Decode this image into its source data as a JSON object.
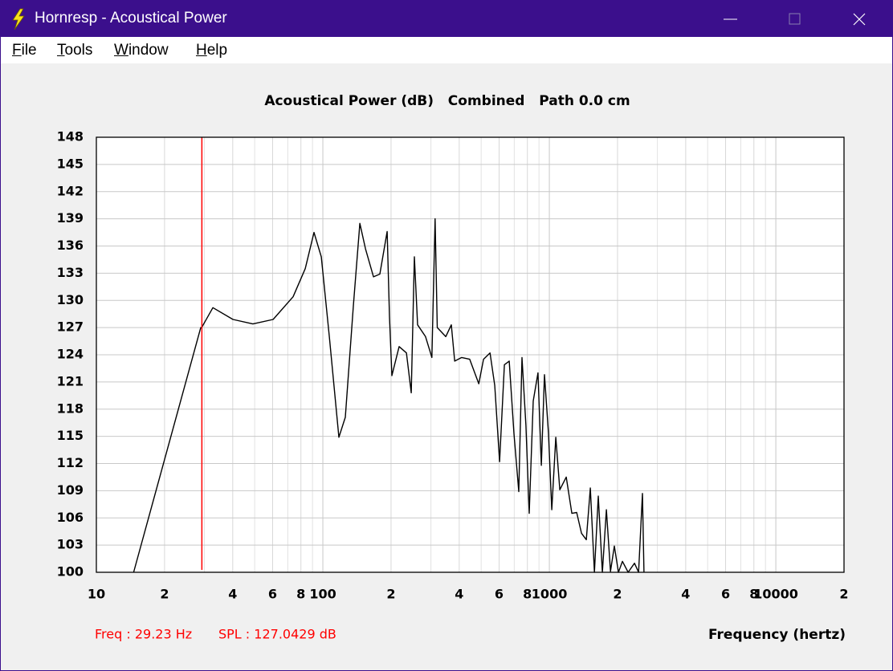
{
  "window": {
    "title": "Hornresp - Acoustical Power",
    "menu": [
      "File",
      "Tools",
      "Window",
      "Help"
    ]
  },
  "chart_data": {
    "type": "line",
    "title": "Acoustical Power (dB)   Combined   Path 0.0 cm",
    "x_label": "Frequency (hertz)",
    "x_log": true,
    "grid": true,
    "color": "#000000",
    "cursor_color": "#ff0000",
    "cursor_x": 29.23,
    "xlim": [
      10,
      20000
    ],
    "xticks": [
      10,
      {
        "value": 20,
        "label": "2"
      },
      {
        "value": 40,
        "label": "4"
      },
      {
        "value": 60,
        "label": "6"
      },
      {
        "value": 80,
        "label": "8"
      },
      100,
      {
        "value": 200,
        "label": "2"
      },
      {
        "value": 400,
        "label": "4"
      },
      {
        "value": 600,
        "label": "6"
      },
      {
        "value": 800,
        "label": "8"
      },
      1000,
      {
        "value": 2000,
        "label": "2"
      },
      {
        "value": 4000,
        "label": "4"
      },
      {
        "value": 6000,
        "label": "6"
      },
      {
        "value": 8000,
        "label": "8"
      },
      10000,
      {
        "value": 20000,
        "label": "2"
      }
    ],
    "xticks_minor": [
      30,
      50,
      70,
      90,
      300,
      500,
      700,
      900,
      3000,
      5000,
      7000,
      9000
    ],
    "ylim": [
      100,
      148
    ],
    "yticks": [
      100,
      103,
      106,
      109,
      112,
      115,
      118,
      121,
      124,
      127,
      130,
      133,
      136,
      139,
      142,
      145,
      148
    ],
    "x": [
      14.6,
      28.9,
      29.23,
      32.7,
      40.1,
      49.1,
      60.3,
      73.9,
      83.6,
      91.4,
      98.4,
      106.8,
      117.7,
      125.6,
      136.4,
      145.6,
      154.2,
      167.3,
      178.5,
      192.2,
      196.8,
      201.8,
      217.2,
      233.8,
      245.6,
      253.6,
      262,
      284,
      303,
      313,
      320,
      349,
      369,
      382,
      410,
      445,
      488,
      512,
      547,
      574,
      603,
      633,
      665,
      698,
      733,
      757,
      788,
      815,
      849,
      891,
      922,
      952,
      991,
      1025,
      1068,
      1112,
      1187,
      1257,
      1320,
      1387,
      1456,
      1517,
      1581,
      1644,
      1715,
      1786,
      1862,
      1937,
      2018,
      2102,
      2228,
      2377,
      2477,
      2576,
      2618
    ],
    "values": [
      100,
      127.0,
      127.0429,
      129.2,
      127.9,
      127.4,
      127.9,
      130.4,
      133.5,
      137.5,
      134.8,
      126.0,
      114.9,
      117.1,
      129.5,
      138.5,
      135.7,
      132.6,
      132.9,
      137.6,
      128.2,
      121.7,
      124.9,
      124.2,
      119.8,
      134.8,
      127.3,
      126.0,
      123.7,
      139.0,
      127.0,
      126.0,
      127.3,
      123.3,
      123.7,
      123.5,
      120.8,
      123.5,
      124.2,
      120.6,
      112.2,
      122.9,
      123.3,
      115.3,
      108.9,
      123.7,
      116.2,
      106.5,
      118.9,
      122.0,
      111.8,
      121.8,
      115.3,
      106.9,
      114.9,
      109.1,
      110.5,
      106.5,
      106.6,
      104.3,
      103.6,
      109.3,
      100,
      108.4,
      100,
      106.9,
      100.1,
      102.9,
      100,
      101.2,
      100,
      101.0,
      100,
      108.7,
      100
    ]
  },
  "status": {
    "freq": "Freq : 29.23 Hz",
    "spl": "SPL : 127.0429 dB"
  }
}
